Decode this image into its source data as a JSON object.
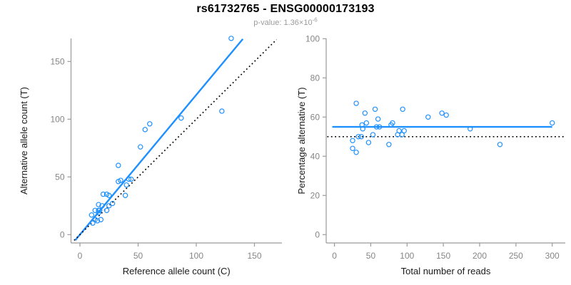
{
  "header": {
    "title": "rs61732765 - ENSG00000173193",
    "subtitle_main": "p-value: 1.36×10",
    "subtitle_exponent": "-6"
  },
  "colors": {
    "accent_blue": "#1E90FF",
    "reference_black": "#000000",
    "axis_gray": "#9a9a9a",
    "tick_label_gray": "#858585",
    "axis_title_dark": "#1a1a1a",
    "subtitle_gray": "#9b9b9b"
  },
  "chart_data": [
    {
      "type": "scatter",
      "name": "allele-counts-scatter",
      "xlabel": "Reference allele count (C)",
      "ylabel": "Alternative allele count (T)",
      "xticks": [
        0,
        50,
        100,
        150
      ],
      "yticks": [
        0,
        50,
        100,
        150
      ],
      "xlim": [
        -5,
        172
      ],
      "ylim": [
        -6,
        172
      ],
      "grid": false,
      "marker": "open-circle",
      "points": [
        [
          11,
          10
        ],
        [
          13,
          13
        ],
        [
          15,
          12
        ],
        [
          18,
          13
        ],
        [
          10,
          17
        ],
        [
          16,
          19
        ],
        [
          13,
          21
        ],
        [
          16,
          21
        ],
        [
          17,
          21
        ],
        [
          23,
          21
        ],
        [
          16,
          26
        ],
        [
          19,
          25
        ],
        [
          25,
          25
        ],
        [
          28,
          27
        ],
        [
          20,
          35
        ],
        [
          23,
          35
        ],
        [
          25,
          34
        ],
        [
          39,
          34
        ],
        [
          40,
          43
        ],
        [
          33,
          46
        ],
        [
          35,
          47
        ],
        [
          42,
          48
        ],
        [
          44,
          48
        ],
        [
          33,
          60
        ],
        [
          52,
          76
        ],
        [
          56,
          91
        ],
        [
          60,
          96
        ],
        [
          87,
          101
        ],
        [
          122,
          107
        ],
        [
          130,
          170
        ]
      ],
      "lines": [
        {
          "name": "regression-line",
          "style": "solid",
          "color": "#1E90FF",
          "x1": -4,
          "y1": -4.8,
          "x2": 140,
          "y2": 169.5
        },
        {
          "name": "identity-line",
          "style": "dotted",
          "color": "#000000",
          "x1": -5,
          "y1": -5,
          "x2": 169,
          "y2": 169
        }
      ]
    },
    {
      "type": "scatter",
      "name": "percentage-vs-reads-scatter",
      "xlabel": "Total number of reads",
      "ylabel": "Percentage alternative (T)",
      "xticks": [
        0,
        50,
        100,
        150,
        200,
        250,
        300
      ],
      "yticks": [
        0,
        20,
        40,
        60,
        80,
        100
      ],
      "xlim": [
        -12,
        320
      ],
      "ylim": [
        0,
        100
      ],
      "grid": false,
      "marker": "open-circle",
      "points": [
        [
          30,
          67
        ],
        [
          42,
          62
        ],
        [
          56,
          64
        ],
        [
          94,
          64
        ],
        [
          60,
          59
        ],
        [
          129,
          60
        ],
        [
          148,
          62
        ],
        [
          154,
          61
        ],
        [
          44,
          57
        ],
        [
          80,
          57
        ],
        [
          78,
          56
        ],
        [
          38,
          56
        ],
        [
          58,
          55
        ],
        [
          62,
          55
        ],
        [
          39,
          54
        ],
        [
          300,
          57
        ],
        [
          187,
          54
        ],
        [
          89,
          53
        ],
        [
          96,
          53
        ],
        [
          87,
          51
        ],
        [
          93,
          51
        ],
        [
          33,
          50
        ],
        [
          37,
          50
        ],
        [
          53,
          51
        ],
        [
          25,
          48
        ],
        [
          47,
          47
        ],
        [
          75,
          46
        ],
        [
          228,
          46
        ],
        [
          25,
          44
        ],
        [
          30,
          42
        ]
      ],
      "lines": [
        {
          "name": "mean-percentage-line",
          "style": "solid",
          "color": "#1E90FF",
          "x1": -3,
          "y1": 55,
          "x2": 300,
          "y2": 55
        },
        {
          "name": "fifty-percent-line",
          "style": "dotted",
          "color": "#000000",
          "x1": -10,
          "y1": 50,
          "x2": 318,
          "y2": 50
        }
      ]
    }
  ]
}
